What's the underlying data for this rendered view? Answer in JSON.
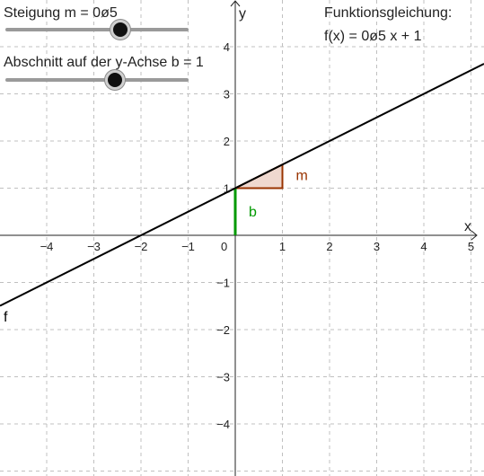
{
  "sliders": {
    "m": {
      "label": "Steigung m = 0ø5",
      "value": 0.5,
      "min": -2,
      "max": 2
    },
    "b": {
      "label": "Abschnitt auf der y-Achse b = 1",
      "value": 1,
      "min": -5,
      "max": 5
    }
  },
  "equation": {
    "heading": "Funktionsgleichung:",
    "formula": "f(x) = 0ø5 x + 1"
  },
  "graph": {
    "x_axis_name": "x",
    "y_axis_name": "y",
    "x_ticks": [
      "−4",
      "−3",
      "−2",
      "−1",
      "1",
      "2",
      "3",
      "4",
      "5"
    ],
    "y_ticks": [
      "4",
      "3",
      "2",
      "1",
      "−1",
      "−2",
      "−3",
      "−4"
    ],
    "origin_label": "0",
    "function_name": "f",
    "slope_label": "m",
    "intercept_label": "b",
    "colors": {
      "line": "#000000",
      "slope": "#993300",
      "slope_fill": "#e8c8bb",
      "intercept": "#009900",
      "grid": "#c0c0c0"
    }
  }
}
